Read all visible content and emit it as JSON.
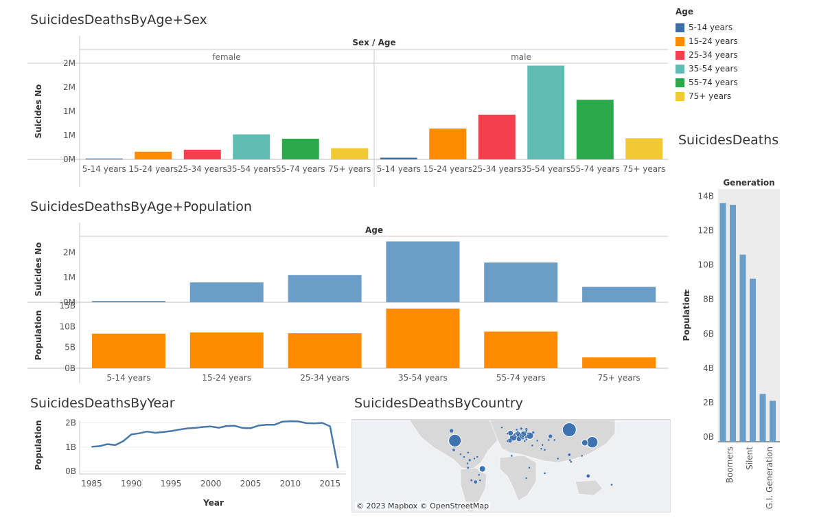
{
  "colors": {
    "age": [
      "#4e79a7",
      "#f28e2b",
      "#e15759",
      "#76b7b2",
      "#59a14f",
      "#edc948"
    ],
    "age_render": [
      "#3b6ea8",
      "#ff8c00",
      "#f43f4e",
      "#5fbcb3",
      "#2aa84a",
      "#f0c933"
    ],
    "blue": "#6a9ec8",
    "orange": "#ff8c00",
    "line": "#4878a8",
    "map_dot": "#3e73b0"
  },
  "titles": {
    "age_sex": "SuicidesDeathsByAge+Sex",
    "age_pop": "SuicidesDeathsByAge+Population",
    "year": "SuicidesDeathsByYear",
    "country": "SuicidesDeathsByCountry",
    "gen": "SuicidesDeathsI"
  },
  "legend": {
    "title": "Age",
    "items": [
      "5-14 years",
      "15-24 years",
      "25-34 years",
      "35-54 years",
      "55-74 years",
      "75+ years"
    ]
  },
  "map": {
    "credit": "© 2023 Mapbox  © OpenStreetMap"
  },
  "chart_data": [
    {
      "id": "age_sex",
      "type": "bar",
      "header": "Sex / Age",
      "panels": [
        "female",
        "male"
      ],
      "categories": [
        "5-14 years",
        "15-24 years",
        "25-34 years",
        "35-54 years",
        "55-74 years",
        "75+ years"
      ],
      "series": [
        {
          "name": "female",
          "values": [
            18000,
            160000,
            200000,
            520000,
            430000,
            230000
          ]
        },
        {
          "name": "male",
          "values": [
            35000,
            640000,
            930000,
            1950000,
            1240000,
            440000
          ]
        }
      ],
      "ylabel": "Suicides No",
      "yticks": [
        {
          "label": "0M",
          "value": 0
        },
        {
          "label": "1M",
          "value": 500000
        },
        {
          "label": "1M",
          "value": 1000000
        },
        {
          "label": "2M",
          "value": 1500000
        },
        {
          "label": "2M",
          "value": 2000000
        }
      ],
      "ylim": [
        0,
        2000000
      ]
    },
    {
      "id": "age_pop",
      "type": "bar",
      "header": "Age",
      "categories": [
        "5-14 years",
        "15-24 years",
        "25-34 years",
        "35-54 years",
        "55-74 years",
        "75+ years"
      ],
      "series": [
        {
          "name": "Suicides No",
          "values": [
            55000,
            800000,
            1100000,
            2450000,
            1600000,
            620000
          ],
          "yticks": [
            {
              "label": "0M",
              "value": 0
            },
            {
              "label": "1M",
              "value": 1000000
            },
            {
              "label": "2M",
              "value": 2000000
            }
          ],
          "ylim": [
            0,
            2600000
          ]
        },
        {
          "name": "Population",
          "values": [
            8300000000,
            8600000000,
            8400000000,
            14300000000,
            8800000000,
            2600000000
          ],
          "yticks": [
            {
              "label": "0B",
              "value": 0
            },
            {
              "label": "5B",
              "value": 5000000000
            },
            {
              "label": "10B",
              "value": 10000000000
            },
            {
              "label": "15B",
              "value": 15000000000
            }
          ],
          "ylim": [
            0,
            15500000000
          ]
        }
      ]
    },
    {
      "id": "year",
      "type": "line",
      "xlabel": "Year",
      "ylabel": "Population",
      "x": [
        1985,
        1986,
        1987,
        1988,
        1989,
        1990,
        1991,
        1992,
        1993,
        1994,
        1995,
        1996,
        1997,
        1998,
        1999,
        2000,
        2001,
        2002,
        2003,
        2004,
        2005,
        2006,
        2007,
        2008,
        2009,
        2010,
        2011,
        2012,
        2013,
        2014,
        2015,
        2016
      ],
      "values": [
        1010000000,
        1040000000,
        1120000000,
        1080000000,
        1250000000,
        1520000000,
        1570000000,
        1640000000,
        1590000000,
        1620000000,
        1660000000,
        1720000000,
        1770000000,
        1790000000,
        1830000000,
        1850000000,
        1800000000,
        1870000000,
        1880000000,
        1790000000,
        1780000000,
        1890000000,
        1920000000,
        1920000000,
        2050000000,
        2070000000,
        2060000000,
        1990000000,
        1980000000,
        2000000000,
        1860000000,
        130000000
      ],
      "xticks": [
        1985,
        1990,
        1995,
        2000,
        2005,
        2010,
        2015
      ],
      "yticks": [
        {
          "label": "0B",
          "value": 0
        },
        {
          "label": "1B",
          "value": 1000000000
        },
        {
          "label": "2B",
          "value": 2000000000
        }
      ],
      "ylim": [
        0,
        2100000000
      ]
    },
    {
      "id": "gen",
      "type": "bar",
      "header": "Generation",
      "ylabel": "Population",
      "categories": [
        "Boomers",
        "",
        "Silent",
        "",
        "G.I. Generation",
        ""
      ],
      "values": [
        13600000000,
        13500000000,
        10600000000,
        9200000000,
        2500000000,
        2100000000
      ],
      "yticks": [
        {
          "label": "0B",
          "value": 0
        },
        {
          "label": "2B",
          "value": 2000000000
        },
        {
          "label": "4B",
          "value": 4000000000
        },
        {
          "label": "6B",
          "value": 6000000000
        },
        {
          "label": "8B",
          "value": 8000000000
        },
        {
          "label": "10B",
          "value": 10000000000
        },
        {
          "label": "12B",
          "value": 12000000000
        },
        {
          "label": "14B",
          "value": 14000000000
        }
      ],
      "ylim": [
        0,
        14100000000
      ]
    },
    {
      "id": "country",
      "type": "scatter",
      "points": [
        {
          "lon": -100,
          "lat": 40,
          "value": 1000000
        },
        {
          "lon": 140,
          "lat": 37,
          "value": 800000
        },
        {
          "lon": 100,
          "lat": 60,
          "value": 1200000
        },
        {
          "lon": 10,
          "lat": 51,
          "value": 300000
        },
        {
          "lon": 2,
          "lat": 46,
          "value": 350000
        },
        {
          "lon": 31,
          "lat": 49,
          "value": 320000
        },
        {
          "lon": 20,
          "lat": 52,
          "value": 180000
        },
        {
          "lon": 127,
          "lat": 36,
          "value": 250000
        },
        {
          "lon": -52,
          "lat": -12,
          "value": 250000
        },
        {
          "lon": -3,
          "lat": 54,
          "value": 200000
        },
        {
          "lon": 12,
          "lat": 43,
          "value": 150000
        },
        {
          "lon": -4,
          "lat": 40,
          "value": 120000
        },
        {
          "lon": 17,
          "lat": 47,
          "value": 120000
        },
        {
          "lon": 67,
          "lat": 48,
          "value": 100000
        },
        {
          "lon": -106,
          "lat": 58,
          "value": 100000
        },
        {
          "lon": 133,
          "lat": -25,
          "value": 80000
        },
        {
          "lon": 25,
          "lat": 61,
          "value": 50000
        },
        {
          "lon": 16,
          "lat": 62,
          "value": 50000
        },
        {
          "lon": 37,
          "lat": 55,
          "value": 50000
        },
        {
          "lon": -64,
          "lat": -36,
          "value": 80000
        },
        {
          "lon": -71,
          "lat": -33,
          "value": 40000
        },
        {
          "lon": -74,
          "lat": 4,
          "value": 50000
        },
        {
          "lon": -77,
          "lat": -10,
          "value": 40000
        },
        {
          "lon": -102,
          "lat": 23,
          "value": 60000
        },
        {
          "lon": -66,
          "lat": 7,
          "value": 30000
        },
        {
          "lon": 100,
          "lat": 14,
          "value": 60000
        },
        {
          "lon": 101,
          "lat": 4,
          "value": 30000
        },
        {
          "lon": 122,
          "lat": 12,
          "value": 30000
        },
        {
          "lon": 25,
          "lat": -29,
          "value": 30000
        },
        {
          "lon": 35,
          "lat": 31,
          "value": 20000
        },
        {
          "lon": 53,
          "lat": 32,
          "value": 20000
        },
        {
          "lon": 174,
          "lat": -41,
          "value": 20000
        },
        {
          "lon": 57,
          "lat": -20,
          "value": 10000
        },
        {
          "lon": -77,
          "lat": 18,
          "value": 10000
        },
        {
          "lon": -90,
          "lat": 15,
          "value": 10000
        },
        {
          "lon": -84,
          "lat": 10,
          "value": 10000
        },
        {
          "lon": -56,
          "lat": -33,
          "value": 10000
        },
        {
          "lon": -58,
          "lat": -23,
          "value": 10000
        },
        {
          "lon": -78,
          "lat": -2,
          "value": 10000
        },
        {
          "lon": 44,
          "lat": 40,
          "value": 10000
        },
        {
          "lon": 28,
          "lat": 53,
          "value": 30000
        },
        {
          "lon": 15,
          "lat": 50,
          "value": 40000
        },
        {
          "lon": 24,
          "lat": 46,
          "value": 40000
        },
        {
          "lon": 5,
          "lat": 52,
          "value": 40000
        },
        {
          "lon": 4,
          "lat": 50,
          "value": 40000
        },
        {
          "lon": 10,
          "lat": 56,
          "value": 20000
        },
        {
          "lon": 8,
          "lat": 60,
          "value": 20000
        },
        {
          "lon": 14,
          "lat": 47,
          "value": 30000
        },
        {
          "lon": -8,
          "lat": 53,
          "value": 20000
        },
        {
          "lon": -8,
          "lat": 39,
          "value": 20000
        },
        {
          "lon": 22,
          "lat": 39,
          "value": 10000
        },
        {
          "lon": 19,
          "lat": 44,
          "value": 20000
        },
        {
          "lon": 25,
          "lat": 42,
          "value": 20000
        },
        {
          "lon": 24,
          "lat": 56,
          "value": 20000
        },
        {
          "lon": 25,
          "lat": 58,
          "value": 10000
        },
        {
          "lon": 74,
          "lat": 41,
          "value": 10000
        },
        {
          "lon": 64,
          "lat": 41,
          "value": 20000
        },
        {
          "lon": 103,
          "lat": 1,
          "value": 10000
        },
        {
          "lon": -61,
          "lat": 10,
          "value": 10000
        },
        {
          "lon": -1,
          "lat": 12,
          "value": 5000
        },
        {
          "lon": 57,
          "lat": 23,
          "value": 5000
        },
        {
          "lon": 51,
          "lat": 25,
          "value": 5000
        },
        {
          "lon": -18,
          "lat": 64,
          "value": 5000
        },
        {
          "lon": 30,
          "lat": -10,
          "value": 5000
        },
        {
          "lon": 80,
          "lat": 7,
          "value": 10000
        }
      ]
    }
  ]
}
